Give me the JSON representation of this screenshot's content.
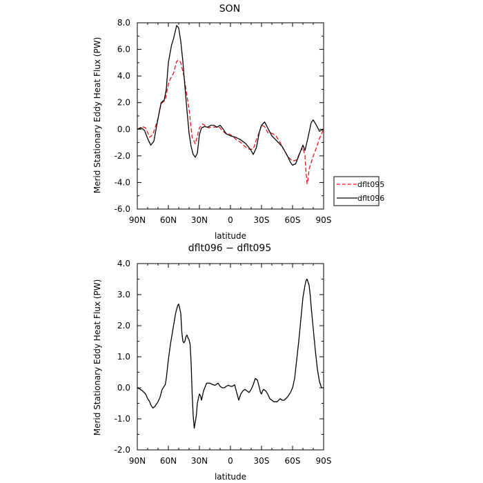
{
  "chart_data": [
    {
      "type": "line",
      "title": "SON",
      "xlabel": "latitude",
      "ylabel": "Merid Stationary Eddy Heat Flux (PW)",
      "xlim": [
        90,
        -90
      ],
      "ylim": [
        -6.0,
        8.0
      ],
      "x_ticks": [
        90,
        60,
        30,
        0,
        -30,
        -60,
        -90
      ],
      "x_tick_labels": [
        "90N",
        "60N",
        "30N",
        "0",
        "30S",
        "60S",
        "90S"
      ],
      "y_ticks": [
        -6,
        -4,
        -2,
        0,
        2,
        4,
        6,
        8
      ],
      "y_tick_labels": [
        "-6.0",
        "-4.0",
        "-2.0",
        "0.0",
        "2.0",
        "4.0",
        "6.0",
        "8.0"
      ],
      "legend": "right",
      "series": [
        {
          "name": "dflt095",
          "color": "#e8141c",
          "style": "dashed",
          "x": [
            90,
            85,
            82,
            78,
            75,
            70,
            67,
            63,
            60,
            58,
            55,
            52,
            50,
            48,
            45,
            40,
            37,
            34,
            30,
            27,
            24,
            21,
            18,
            15,
            12,
            10,
            8,
            5,
            2,
            0,
            -3,
            -6,
            -10,
            -14,
            -18,
            -22,
            -25,
            -28,
            -30,
            -33,
            -36,
            -40,
            -44,
            -48,
            -52,
            -56,
            -60,
            -64,
            -68,
            -70,
            -72,
            -73,
            -74,
            -75,
            -76,
            -78,
            -80,
            -83,
            -86,
            -90
          ],
          "y": [
            0.0,
            0.2,
            0.1,
            -0.6,
            -0.4,
            0.8,
            1.9,
            2.2,
            3.4,
            3.8,
            4.2,
            5.1,
            5.2,
            5.0,
            4.0,
            1.5,
            -0.6,
            -1.1,
            0.1,
            0.4,
            0.25,
            0.1,
            0.2,
            0.15,
            0.2,
            0.1,
            -0.1,
            -0.3,
            -0.35,
            -0.4,
            -0.6,
            -0.8,
            -1.0,
            -1.3,
            -1.5,
            -1.5,
            -0.8,
            -0.2,
            0.3,
            0.2,
            -0.25,
            -0.3,
            -0.5,
            -1.0,
            -1.6,
            -2.1,
            -2.4,
            -2.3,
            -1.6,
            -1.4,
            -2.0,
            -3.2,
            -4.1,
            -3.7,
            -3.0,
            -2.5,
            -2.0,
            -1.4,
            -0.7,
            0.0
          ]
        },
        {
          "name": "dflt096",
          "color": "#000000",
          "style": "solid",
          "x": [
            90,
            86,
            83,
            80,
            77,
            74,
            70,
            67,
            64,
            62,
            60,
            57,
            55,
            52,
            50,
            48,
            46,
            44,
            42,
            40,
            38,
            36,
            34,
            32,
            30,
            28,
            25,
            22,
            19,
            16,
            13,
            10,
            7,
            4,
            0,
            -5,
            -10,
            -15,
            -20,
            -22,
            -25,
            -28,
            -30,
            -33,
            -36,
            -40,
            -45,
            -50,
            -55,
            -58,
            -60,
            -63,
            -66,
            -69,
            -70,
            -72,
            -75,
            -78,
            -80,
            -83,
            -86,
            -90
          ],
          "y": [
            0.0,
            0.1,
            -0.1,
            -0.7,
            -1.2,
            -0.9,
            0.8,
            2.0,
            2.2,
            3.0,
            5.0,
            6.3,
            6.8,
            7.8,
            7.6,
            6.6,
            5.1,
            3.2,
            1.4,
            -0.3,
            -1.3,
            -1.9,
            -2.1,
            -1.8,
            -0.4,
            0.1,
            0.2,
            0.15,
            0.3,
            0.3,
            0.15,
            0.3,
            0.0,
            -0.35,
            -0.5,
            -0.6,
            -0.8,
            -1.1,
            -1.6,
            -1.9,
            -1.4,
            -0.2,
            0.3,
            0.55,
            0.1,
            -0.5,
            -0.9,
            -1.3,
            -2.0,
            -2.5,
            -2.7,
            -2.6,
            -2.0,
            -1.4,
            -1.2,
            -1.6,
            -0.6,
            0.5,
            0.7,
            0.3,
            -0.15,
            0.0
          ]
        }
      ]
    },
    {
      "type": "line",
      "title": "dflt096 − dflt095",
      "xlabel": "latitude",
      "ylabel": "Merid Stationary Eddy Heat Flux (PW)",
      "xlim": [
        90,
        -90
      ],
      "ylim": [
        -2.0,
        4.0
      ],
      "x_ticks": [
        90,
        60,
        30,
        0,
        -30,
        -60,
        -90
      ],
      "x_tick_labels": [
        "90N",
        "60N",
        "30N",
        "0",
        "30S",
        "60S",
        "90S"
      ],
      "y_ticks": [
        -2,
        -1,
        0,
        1,
        2,
        3,
        4
      ],
      "y_tick_labels": [
        "-2.0",
        "-1.0",
        "0.0",
        "1.0",
        "2.0",
        "3.0",
        "4.0"
      ],
      "series": [
        {
          "color": "#000000",
          "style": "solid",
          "x": [
            90,
            87,
            85,
            82,
            80,
            78,
            77,
            75,
            73,
            72,
            70,
            68,
            66,
            63,
            62,
            60,
            58,
            55,
            53,
            51,
            50,
            48,
            47,
            46,
            45,
            44,
            43,
            42,
            41,
            40,
            39,
            38,
            37,
            36,
            35,
            33,
            32,
            30,
            29,
            28,
            26,
            23,
            20,
            17,
            15,
            12,
            10,
            8,
            6,
            4,
            2,
            0,
            -2,
            -4,
            -6,
            -8,
            -10,
            -12,
            -14,
            -16,
            -18,
            -20,
            -22,
            -24,
            -26,
            -28,
            -29,
            -30,
            -31,
            -32,
            -34,
            -36,
            -38,
            -40,
            -42,
            -45,
            -48,
            -50,
            -52,
            -55,
            -58,
            -60,
            -62,
            -64,
            -66,
            -68,
            -70,
            -72,
            -73,
            -74,
            -75,
            -76,
            -77,
            -78,
            -80,
            -82,
            -84,
            -86,
            -88,
            -90
          ],
          "y": [
            0.0,
            -0.05,
            -0.1,
            -0.2,
            -0.35,
            -0.45,
            -0.55,
            -0.65,
            -0.6,
            -0.55,
            -0.45,
            -0.3,
            -0.05,
            0.1,
            0.3,
            0.9,
            1.4,
            2.0,
            2.4,
            2.65,
            2.7,
            2.4,
            1.8,
            1.5,
            1.45,
            1.5,
            1.65,
            1.7,
            1.6,
            1.55,
            1.4,
            0.8,
            -0.2,
            -0.9,
            -1.3,
            -0.9,
            -0.5,
            -0.2,
            -0.25,
            -0.4,
            -0.1,
            0.15,
            0.15,
            0.1,
            0.08,
            0.15,
            0.05,
            0.0,
            0.0,
            0.05,
            0.08,
            0.05,
            0.05,
            0.1,
            -0.15,
            -0.4,
            -0.2,
            -0.1,
            -0.05,
            -0.1,
            -0.15,
            -0.05,
            0.1,
            0.3,
            0.25,
            0.0,
            -0.15,
            -0.2,
            -0.1,
            -0.05,
            -0.1,
            -0.2,
            -0.35,
            -0.4,
            -0.45,
            -0.45,
            -0.35,
            -0.4,
            -0.4,
            -0.3,
            -0.15,
            0.0,
            0.3,
            0.9,
            1.5,
            2.2,
            2.9,
            3.3,
            3.45,
            3.5,
            3.4,
            3.3,
            3.0,
            2.6,
            1.9,
            1.2,
            0.6,
            0.2,
            0.0,
            0.0
          ]
        }
      ]
    }
  ]
}
